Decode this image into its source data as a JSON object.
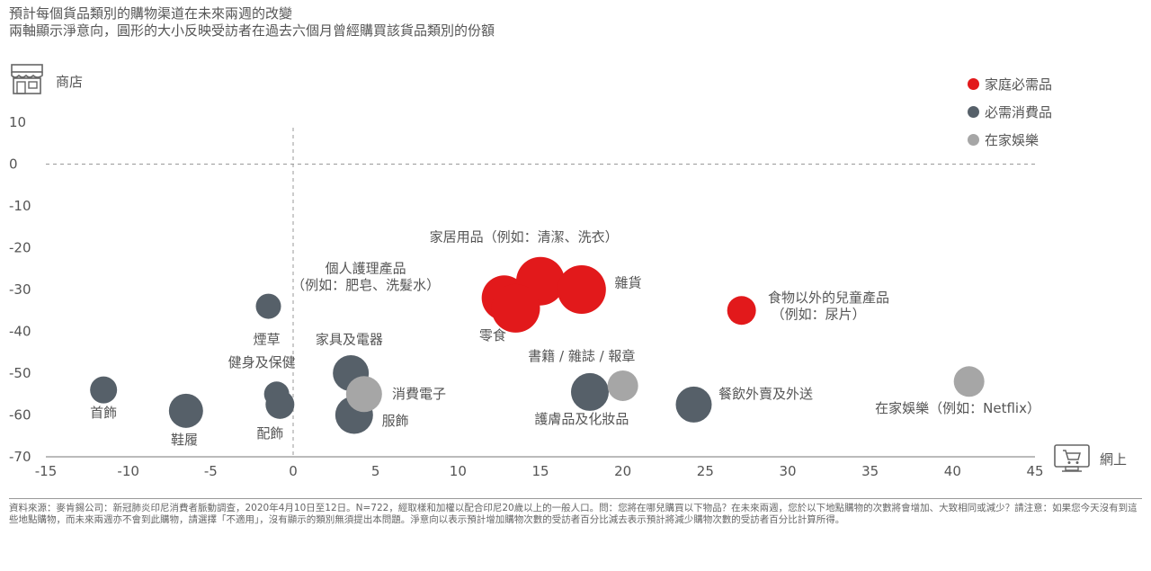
{
  "title_lines": [
    "預計每個貨品類別的購物渠道在未來兩週的改變",
    "兩軸顯示淨意向，圓形的大小反映受訪者在過去六個月曾經購買該貨品類別的份額"
  ],
  "axis_icons": {
    "store_label": "商店",
    "online_label": "網上"
  },
  "legend": [
    {
      "label": "家庭必需品",
      "color": "#e2191b"
    },
    {
      "label": "必需消費品",
      "color": "#566069"
    },
    {
      "label": "在家娛樂",
      "color": "#a6a6a6"
    }
  ],
  "footer_text": "資料來源：麥肯錫公司：新冠肺炎印尼消費者脈動調查，2020年4月10日至12日。N=722，經取樣和加權以配合印尼20歲以上的一般人口。問：您將在哪兒購買以下物品？在未來兩週，您於以下地點購物的次數將會增加、大致相同或減少？請注意：如果您今天沒有到這些地點購物，而未來兩週亦不會到此購物，請選擇「不適用」，沒有顯示的類別無須提出本問題。淨意向以表示預計增加購物次數的受訪者百分比減去表示預計將減少購物次數的受訪者百分比計算所得。",
  "chart_data": {
    "type": "scatter",
    "xlim": [
      -15,
      45
    ],
    "ylim": [
      -70,
      10
    ],
    "x_ticks": [
      "-15",
      "-10",
      "-5",
      "0",
      "5",
      "10",
      "15",
      "20",
      "25",
      "30",
      "35",
      "40",
      "45"
    ],
    "y_ticks": [
      "10",
      "0",
      "-10",
      "-20",
      "-30",
      "-40",
      "-50",
      "-60",
      "-70"
    ],
    "x_tick_values": [
      -15,
      -10,
      -5,
      0,
      5,
      10,
      15,
      20,
      25,
      30,
      35,
      40,
      45
    ],
    "y_tick_values": [
      10,
      0,
      -10,
      -20,
      -30,
      -40,
      -50,
      -60,
      -70
    ],
    "points": [
      {
        "label": "家居用品（例如：清潔、洗衣）",
        "group": 0,
        "x": 15,
        "y": -28,
        "size": 1.35
      },
      {
        "label": "個人護理產品（例如：肥皂、洗髮水）",
        "group": 0,
        "x": 12.8,
        "y": -32,
        "size": 1.25
      },
      {
        "label": "零食",
        "group": 0,
        "x": 13.5,
        "y": -34.5,
        "size": 1.35
      },
      {
        "label": "雜貨",
        "group": 0,
        "x": 17.5,
        "y": -30,
        "size": 1.35
      },
      {
        "label": "食物以外的兒童產品（例如：尿片）",
        "group": 0,
        "x": 27.2,
        "y": -35,
        "size": 0.8
      },
      {
        "label": "煙草",
        "group": 1,
        "x": -1.5,
        "y": -34,
        "size": 0.7
      },
      {
        "label": "首飾",
        "group": 1,
        "x": -11.5,
        "y": -54,
        "size": 0.75
      },
      {
        "label": "鞋履",
        "group": 1,
        "x": -6.5,
        "y": -59,
        "size": 0.95
      },
      {
        "label": "健身及保健",
        "group": 1,
        "x": -1,
        "y": -55,
        "size": 0.7
      },
      {
        "label": "配飾",
        "group": 1,
        "x": -0.8,
        "y": -57.5,
        "size": 0.8
      },
      {
        "label": "家具及電器",
        "group": 1,
        "x": 3.5,
        "y": -50,
        "size": 1.0
      },
      {
        "label": "服飾",
        "group": 1,
        "x": 3.7,
        "y": -60,
        "size": 1.05
      },
      {
        "label": "消費電子",
        "group": 2,
        "x": 4.3,
        "y": -55,
        "size": 1.0
      },
      {
        "label": "護膚品及化妝品",
        "group": 1,
        "x": 18,
        "y": -54.5,
        "size": 1.05
      },
      {
        "label": "書籍 / 雜誌 / 報章",
        "group": 2,
        "x": 20,
        "y": -53,
        "size": 0.85
      },
      {
        "label": "餐飲外賣及外送",
        "group": 1,
        "x": 24.3,
        "y": -57.5,
        "size": 1.0
      },
      {
        "label": "在家娛樂（例如：Netflix）",
        "group": 2,
        "x": 41,
        "y": -52,
        "size": 0.85
      }
    ],
    "annotations": [
      {
        "text": "家居用品（例如：清潔、洗衣）",
        "x": 14,
        "y": -18.5,
        "anchor": "middle"
      },
      {
        "text": "個人護理產品",
        "x": 4.4,
        "y": -26,
        "anchor": "middle"
      },
      {
        "text": "（例如：肥皂、洗髮水）",
        "x": 4.4,
        "y": -30,
        "anchor": "middle"
      },
      {
        "text": "零食",
        "x": 12.1,
        "y": -42,
        "anchor": "middle"
      },
      {
        "text": "雜貨",
        "x": 19.5,
        "y": -29.5,
        "anchor": "start"
      },
      {
        "text": "食物以外的兒童產品",
        "x": 28.8,
        "y": -33,
        "anchor": "start"
      },
      {
        "text": "（例如：尿片）",
        "x": 29,
        "y": -37,
        "anchor": "start"
      },
      {
        "text": "煙草",
        "x": -1.6,
        "y": -43,
        "anchor": "middle"
      },
      {
        "text": "首飾",
        "x": -11.5,
        "y": -60.5,
        "anchor": "middle"
      },
      {
        "text": "鞋履",
        "x": -6.6,
        "y": -67,
        "anchor": "middle"
      },
      {
        "text": "健身及保健",
        "x": -1.9,
        "y": -48.5,
        "anchor": "middle"
      },
      {
        "text": "配飾",
        "x": -1.4,
        "y": -65.5,
        "anchor": "middle"
      },
      {
        "text": "家具及電器",
        "x": 3.4,
        "y": -43,
        "anchor": "middle"
      },
      {
        "text": "服飾",
        "x": 6.2,
        "y": -62.5,
        "anchor": "middle"
      },
      {
        "text": "消費電子",
        "x": 6.0,
        "y": -56,
        "anchor": "start"
      },
      {
        "text": "書籍 / 雜誌 / 報章",
        "x": 17.5,
        "y": -47,
        "anchor": "middle"
      },
      {
        "text": "護膚品及化妝品",
        "x": 17.5,
        "y": -62,
        "anchor": "middle"
      },
      {
        "text": "餐飲外賣及外送",
        "x": 25.8,
        "y": -56,
        "anchor": "start"
      },
      {
        "text": "在家娛樂（例如：Netflix）",
        "x": 35.3,
        "y": -59.5,
        "anchor": "start"
      }
    ]
  }
}
